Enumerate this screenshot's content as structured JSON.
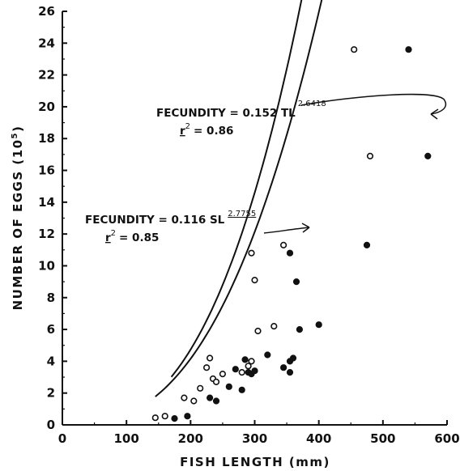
{
  "chart_data": {
    "type": "scatter",
    "xlabel": "FISH  LENGTH  (mm)",
    "ylabel": "NUMBER OF EGGS (10",
    "ylabel_exp": "5",
    "ylabel_close": ")",
    "xlim": [
      0,
      600
    ],
    "ylim": [
      0,
      26
    ],
    "xticks": [
      "0",
      "100",
      "200",
      "300",
      "400",
      "500",
      "600"
    ],
    "yticks": [
      "0",
      "2",
      "4",
      "6",
      "8",
      "10",
      "12",
      "14",
      "16",
      "18",
      "20",
      "22",
      "24",
      "26"
    ],
    "grid": false,
    "series": [
      {
        "marker": "open-circle",
        "points": [
          [
            145,
            0.45
          ],
          [
            160,
            0.55
          ],
          [
            190,
            1.7
          ],
          [
            205,
            1.5
          ],
          [
            215,
            2.3
          ],
          [
            225,
            3.6
          ],
          [
            230,
            4.2
          ],
          [
            235,
            2.9
          ],
          [
            240,
            2.7
          ],
          [
            250,
            3.2
          ],
          [
            280,
            3.3
          ],
          [
            290,
            3.7
          ],
          [
            295,
            4.0
          ],
          [
            295,
            10.8
          ],
          [
            300,
            9.1
          ],
          [
            305,
            5.9
          ],
          [
            330,
            6.2
          ],
          [
            345,
            11.3
          ],
          [
            455,
            23.6
          ],
          [
            480,
            16.9
          ]
        ]
      },
      {
        "marker": "filled-circle",
        "points": [
          [
            175,
            0.4
          ],
          [
            195,
            0.55
          ],
          [
            230,
            1.7
          ],
          [
            240,
            1.5
          ],
          [
            260,
            2.4
          ],
          [
            270,
            3.5
          ],
          [
            280,
            2.2
          ],
          [
            285,
            4.1
          ],
          [
            290,
            3.3
          ],
          [
            295,
            3.2
          ],
          [
            300,
            3.4
          ],
          [
            320,
            4.4
          ],
          [
            345,
            3.6
          ],
          [
            355,
            3.3
          ],
          [
            355,
            4.0
          ],
          [
            355,
            10.8
          ],
          [
            360,
            4.2
          ],
          [
            365,
            9.0
          ],
          [
            370,
            6.0
          ],
          [
            400,
            6.3
          ],
          [
            475,
            11.3
          ],
          [
            540,
            23.6
          ],
          [
            570,
            16.9
          ]
        ]
      }
    ],
    "fit_curves": [
      {
        "series_index": 0,
        "a": 0.152,
        "b": 2.6418,
        "x_range": [
          145,
          528
        ]
      },
      {
        "series_index": 1,
        "a": 0.116,
        "b": 2.7755,
        "x_range": [
          170,
          590
        ]
      }
    ],
    "annotations": [
      {
        "label": "FECUNDITY = 0.152 TL",
        "exponent": "2.6418",
        "r2_label": "r",
        "r2_exp": "2",
        "r2_value": "= 0.86"
      },
      {
        "label": "FECUNDITY = 0.116 SL",
        "exponent": "2.7755",
        "r2_label": "r",
        "r2_exp": "2",
        "r2_value": "= 0.85"
      }
    ]
  }
}
